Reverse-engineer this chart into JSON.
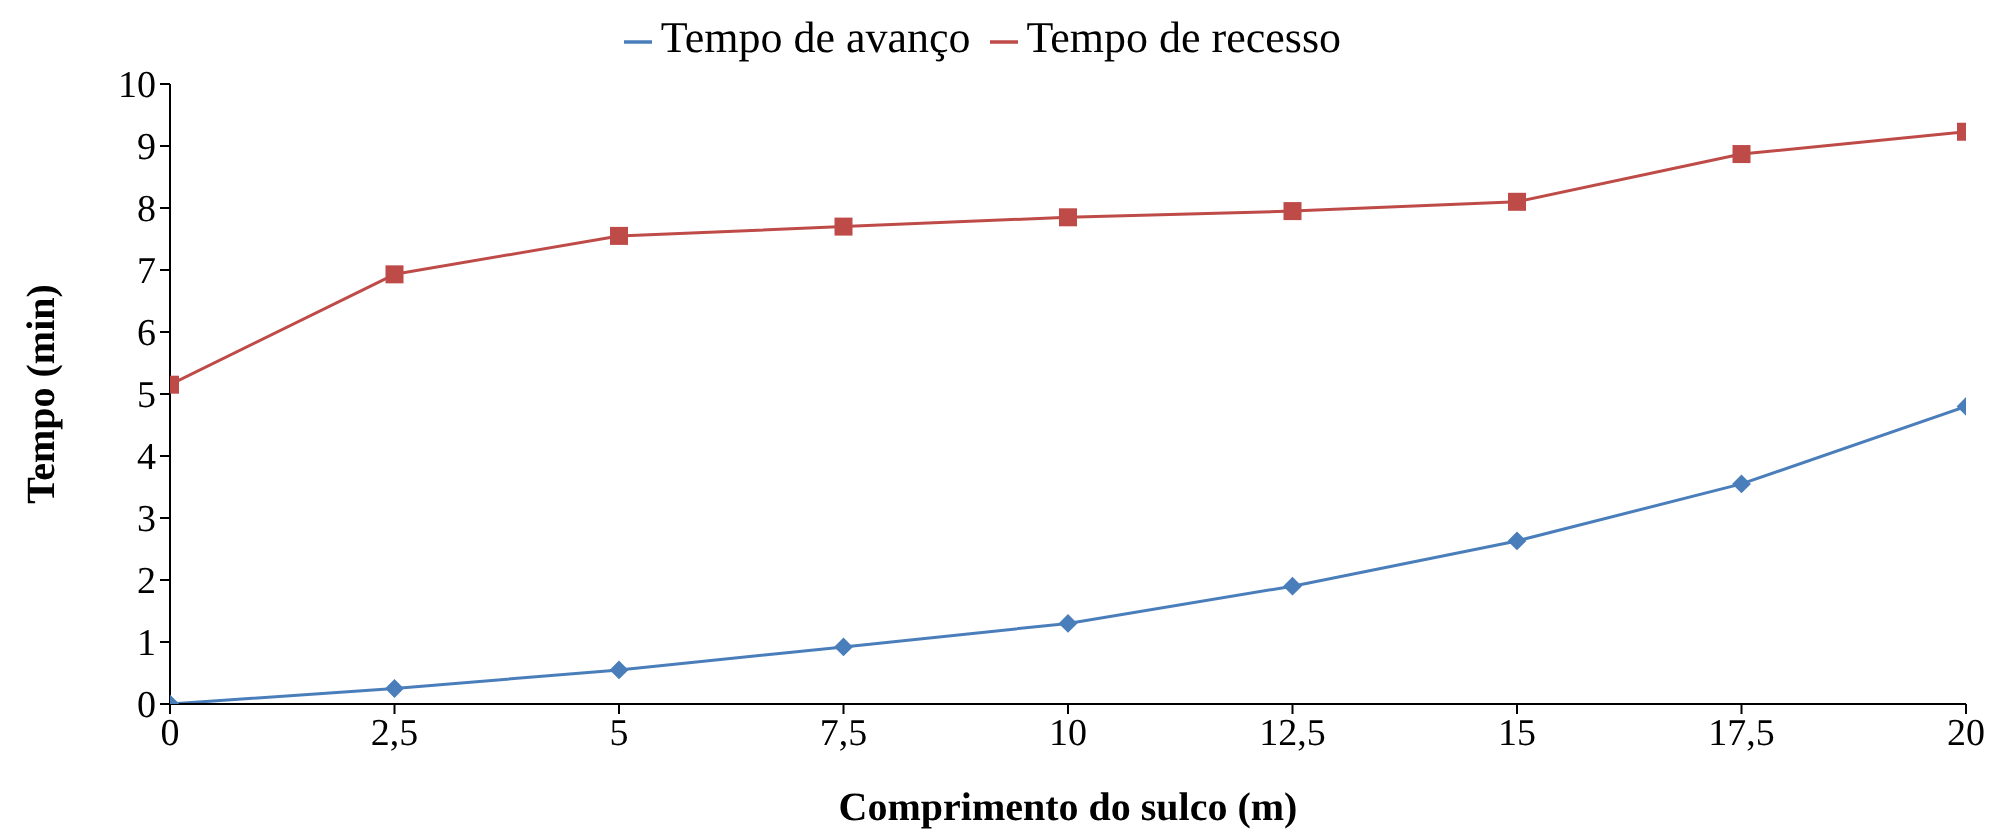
{
  "chart_data": {
    "type": "line",
    "xlabel": "Comprimento do sulco (m)",
    "ylabel": "Tempo (min)",
    "x": [
      0,
      2.5,
      5,
      7.5,
      10,
      12.5,
      15,
      17.5,
      20
    ],
    "series": [
      {
        "name": "Tempo de avanço",
        "color": "#4a7ebb",
        "marker": "diamond",
        "values": [
          0,
          0.25,
          0.55,
          0.92,
          1.3,
          1.9,
          2.63,
          3.55,
          4.8
        ]
      },
      {
        "name": "Tempo de recesso",
        "color": "#be4b48",
        "marker": "square",
        "values": [
          5.15,
          6.93,
          7.55,
          7.7,
          7.85,
          7.95,
          8.1,
          8.87,
          9.23
        ]
      }
    ],
    "xlim": [
      0,
      20
    ],
    "xticks": [
      0,
      {
        "value": 2.5,
        "label": "2,5"
      },
      5,
      {
        "value": 7.5,
        "label": "7,5"
      },
      10,
      {
        "value": 12.5,
        "label": "12,5"
      },
      15,
      {
        "value": 17.5,
        "label": "17,5"
      },
      20
    ],
    "ylim": [
      0,
      10
    ],
    "yticks": [
      0,
      1,
      2,
      3,
      4,
      5,
      6,
      7,
      8,
      9,
      10
    ],
    "grid": false,
    "legend": "top",
    "line_style": "solid"
  }
}
